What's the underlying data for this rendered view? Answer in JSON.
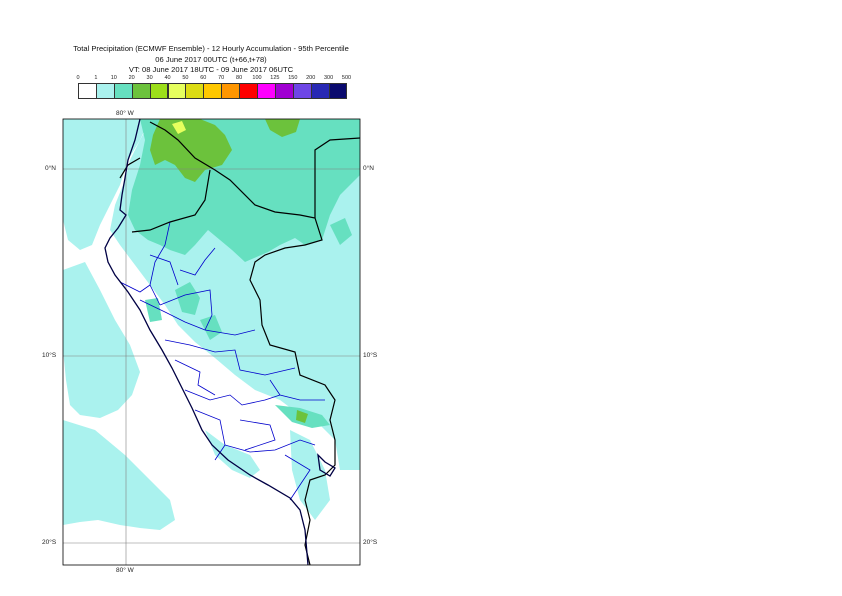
{
  "title": {
    "line1": "Total Precipitation (ECMWF Ensemble) - 12 Hourly Accumulation - 95th Percentile",
    "line2": "06 June 2017 00UTC (t+66,t+78)",
    "line3": "VT: 08 June 2017 18UTC - 09 June 2017 06UTC"
  },
  "colorbar": {
    "labels": [
      "0",
      "1",
      "10",
      "20",
      "30",
      "40",
      "50",
      "60",
      "70",
      "80",
      "100",
      "125",
      "150",
      "200",
      "300",
      "500"
    ],
    "colors": [
      "#ffffff",
      "#aaf2ee",
      "#66e0c0",
      "#6cc23c",
      "#9cde1a",
      "#e6ff5e",
      "#dcdc14",
      "#ffc800",
      "#ff9600",
      "#ff0000",
      "#ff00ff",
      "#a000d2",
      "#6e46e6",
      "#2828b4",
      "#0a0a6e"
    ]
  },
  "map": {
    "lon_labels": [
      "80° W",
      "80° W"
    ],
    "lat_labels": {
      "n0": "0°N",
      "s10": "10°S",
      "s20": "20°S"
    },
    "colors": {
      "sea_bg": "#ffffff",
      "light": "#aaf2ee",
      "medium": "#66e0c0",
      "green": "#6cc23c",
      "yellow": "#e6ff5e",
      "coast": "#000044",
      "border": "#000000",
      "admin": "#0000cc",
      "grid": "#808080"
    }
  }
}
